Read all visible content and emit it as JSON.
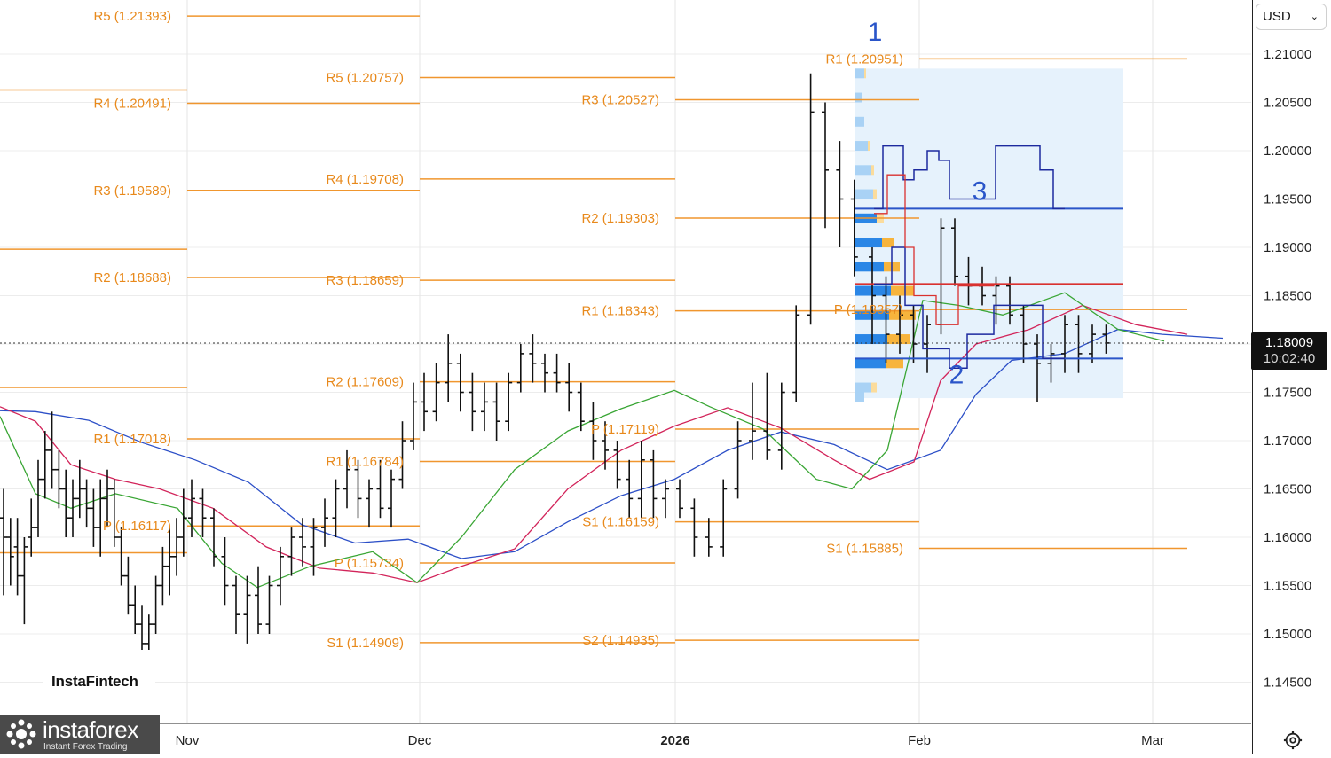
{
  "currency": {
    "label": "USD"
  },
  "last_price": {
    "value": "1.18009",
    "countdown": "10:02:40"
  },
  "brand": {
    "chart_brand": "InstaFintech",
    "watermark_name": "instaforex",
    "watermark_sub": "Instant Forex Trading"
  },
  "icons": {
    "dropdown": "chevron-down-icon",
    "settings": "gear-icon",
    "logo": "instaforex-logo-icon"
  },
  "colors": {
    "pivot": "#f0962e",
    "pivot_text": "#e8891b",
    "candle": "#111111",
    "ma_fast": "#3aa635",
    "ma_mid": "#d2245a",
    "ma_slow": "#2c4fc7",
    "profile_blue": "#2a86e6",
    "profile_orange": "#f7b43c",
    "range_fill": "#e6f2fc",
    "poc": "#d9312f",
    "level": "#2a55c9",
    "va_line": "#1d2a9e",
    "wave_label": "#2a55c9"
  },
  "chart_data": {
    "type": "ohlc",
    "symbol_quote": "USD",
    "y_axis": {
      "min": 1.14,
      "max": 1.215,
      "ticks": [
        "1.21000",
        "1.20500",
        "1.20000",
        "1.19500",
        "1.19000",
        "1.18500",
        "1.18000",
        "1.17500",
        "1.17000",
        "1.16500",
        "1.16000",
        "1.15500",
        "1.15000",
        "1.14500"
      ]
    },
    "x_axis": {
      "labels": [
        "Nov",
        "Dec",
        "2026",
        "Feb",
        "Mar"
      ],
      "bold": [
        "2026"
      ]
    },
    "grid": true,
    "last_price": 1.18009,
    "pivot_levels": [
      {
        "period": 0,
        "levels": [
          {
            "label": "R5 (1.21393)",
            "price": 1.21393
          },
          {
            "label": "R4 (1.20491)",
            "price": 1.20491
          },
          {
            "label": "R3 (1.19589)",
            "price": 1.19589
          },
          {
            "label": "R2 (1.18688)",
            "price": 1.18688
          },
          {
            "label": "R1 (1.17018)",
            "price": 1.17018
          },
          {
            "label": "P (1.16117)",
            "price": 1.16117
          }
        ]
      },
      {
        "period": 1,
        "levels": [
          {
            "label": "R5 (1.20757)",
            "price": 1.20757
          },
          {
            "label": "R4 (1.19708)",
            "price": 1.19708
          },
          {
            "label": "R3 (1.18659)",
            "price": 1.18659
          },
          {
            "label": "R2 (1.17609)",
            "price": 1.17609
          },
          {
            "label": "R1 (1.16784)",
            "price": 1.16784
          },
          {
            "label": "P (1.15734)",
            "price": 1.15734
          },
          {
            "label": "S1 (1.14909)",
            "price": 1.14909
          }
        ]
      },
      {
        "period": 2,
        "levels": [
          {
            "label": "R3 (1.20527)",
            "price": 1.20527
          },
          {
            "label": "R2 (1.19303)",
            "price": 1.19303
          },
          {
            "label": "R1 (1.18343)",
            "price": 1.18343
          },
          {
            "label": "P (1.17119)",
            "price": 1.17119
          },
          {
            "label": "S1 (1.16159)",
            "price": 1.16159
          },
          {
            "label": "S2 (1.14935)",
            "price": 1.14935
          }
        ]
      },
      {
        "period": 3,
        "levels": [
          {
            "label": "R1 (1.20951)",
            "price": 1.20951
          },
          {
            "label": "P (1.18357)",
            "price": 1.18357
          },
          {
            "label": "S1 (1.15885)",
            "price": 1.15885
          }
        ]
      }
    ],
    "wave_labels": [
      "1",
      "2",
      "3"
    ],
    "volume_profile": {
      "poc": 1.1862,
      "value_area_high": 1.194,
      "value_area_low": 1.1785
    },
    "candles_daily": [
      [
        1.162,
        1.165,
        1.154,
        1.16
      ],
      [
        1.16,
        1.162,
        1.155,
        1.158
      ],
      [
        1.159,
        1.162,
        1.154,
        1.156
      ],
      [
        1.156,
        1.16,
        1.151,
        1.159
      ],
      [
        1.16,
        1.164,
        1.158,
        1.161
      ],
      [
        1.161,
        1.168,
        1.16,
        1.166
      ],
      [
        1.166,
        1.171,
        1.164,
        1.169
      ],
      [
        1.169,
        1.173,
        1.165,
        1.167
      ],
      [
        1.167,
        1.169,
        1.163,
        1.165
      ],
      [
        1.165,
        1.167,
        1.16,
        1.162
      ],
      [
        1.162,
        1.166,
        1.16,
        1.164
      ],
      [
        1.164,
        1.168,
        1.162,
        1.165
      ],
      [
        1.165,
        1.166,
        1.161,
        1.163
      ],
      [
        1.163,
        1.165,
        1.159,
        1.161
      ],
      [
        1.161,
        1.166,
        1.158,
        1.164
      ],
      [
        1.164,
        1.167,
        1.161,
        1.165
      ],
      [
        1.165,
        1.166,
        1.159,
        1.16
      ],
      [
        1.16,
        1.161,
        1.155,
        1.156
      ],
      [
        1.156,
        1.158,
        1.152,
        1.153
      ],
      [
        1.153,
        1.155,
        1.15,
        1.151
      ],
      [
        1.151,
        1.153,
        1.147,
        1.149
      ],
      [
        1.149,
        1.152,
        1.148,
        1.151
      ],
      [
        1.151,
        1.156,
        1.15,
        1.155
      ],
      [
        1.155,
        1.159,
        1.153,
        1.157
      ],
      [
        1.157,
        1.161,
        1.154,
        1.158
      ],
      [
        1.158,
        1.162,
        1.156,
        1.16
      ],
      [
        1.16,
        1.165,
        1.158,
        1.162
      ],
      [
        1.162,
        1.166,
        1.16,
        1.164
      ],
      [
        1.164,
        1.165,
        1.16,
        1.162
      ],
      [
        1.162,
        1.163,
        1.157,
        1.158
      ],
      [
        1.158,
        1.16,
        1.153,
        1.155
      ],
      [
        1.155,
        1.156,
        1.15,
        1.152
      ],
      [
        1.152,
        1.156,
        1.149,
        1.154
      ],
      [
        1.154,
        1.157,
        1.15,
        1.151
      ],
      [
        1.151,
        1.156,
        1.15,
        1.155
      ],
      [
        1.155,
        1.159,
        1.153,
        1.158
      ],
      [
        1.158,
        1.161,
        1.156,
        1.16
      ],
      [
        1.16,
        1.162,
        1.157,
        1.159
      ],
      [
        1.159,
        1.162,
        1.156,
        1.161
      ],
      [
        1.161,
        1.164,
        1.159,
        1.162
      ],
      [
        1.162,
        1.166,
        1.16,
        1.165
      ],
      [
        1.165,
        1.169,
        1.163,
        1.167
      ],
      [
        1.167,
        1.168,
        1.162,
        1.164
      ],
      [
        1.164,
        1.166,
        1.161,
        1.165
      ],
      [
        1.165,
        1.168,
        1.162,
        1.163
      ],
      [
        1.163,
        1.167,
        1.161,
        1.166
      ],
      [
        1.166,
        1.172,
        1.165,
        1.17
      ],
      [
        1.17,
        1.176,
        1.169,
        1.174
      ],
      [
        1.174,
        1.177,
        1.171,
        1.173
      ],
      [
        1.173,
        1.178,
        1.172,
        1.176
      ],
      [
        1.176,
        1.181,
        1.174,
        1.178
      ],
      [
        1.178,
        1.179,
        1.173,
        1.175
      ],
      [
        1.175,
        1.177,
        1.171,
        1.173
      ],
      [
        1.173,
        1.176,
        1.171,
        1.174
      ],
      [
        1.174,
        1.176,
        1.17,
        1.172
      ],
      [
        1.172,
        1.177,
        1.171,
        1.176
      ],
      [
        1.176,
        1.18,
        1.175,
        1.179
      ],
      [
        1.179,
        1.181,
        1.176,
        1.178
      ],
      [
        1.178,
        1.179,
        1.175,
        1.177
      ],
      [
        1.177,
        1.179,
        1.175,
        1.176
      ],
      [
        1.176,
        1.178,
        1.173,
        1.175
      ],
      [
        1.175,
        1.176,
        1.171,
        1.172
      ],
      [
        1.172,
        1.174,
        1.168,
        1.17
      ],
      [
        1.17,
        1.172,
        1.167,
        1.169
      ],
      [
        1.169,
        1.17,
        1.165,
        1.166
      ],
      [
        1.166,
        1.168,
        1.162,
        1.164
      ],
      [
        1.164,
        1.17,
        1.162,
        1.168
      ],
      [
        1.168,
        1.169,
        1.162,
        1.164
      ],
      [
        1.164,
        1.166,
        1.162,
        1.165
      ],
      [
        1.165,
        1.166,
        1.162,
        1.163
      ],
      [
        1.163,
        1.164,
        1.158,
        1.16
      ],
      [
        1.16,
        1.162,
        1.158,
        1.159
      ],
      [
        1.159,
        1.166,
        1.158,
        1.165
      ],
      [
        1.165,
        1.172,
        1.164,
        1.17
      ],
      [
        1.17,
        1.176,
        1.168,
        1.171
      ],
      [
        1.171,
        1.177,
        1.168,
        1.169
      ],
      [
        1.169,
        1.176,
        1.167,
        1.175
      ],
      [
        1.175,
        1.184,
        1.174,
        1.183
      ],
      [
        1.183,
        1.208,
        1.182,
        1.204
      ],
      [
        1.204,
        1.205,
        1.192,
        1.198
      ],
      [
        1.198,
        1.201,
        1.19,
        1.195
      ],
      [
        1.195,
        1.197,
        1.187,
        1.189
      ],
      [
        1.189,
        1.19,
        1.18,
        1.185
      ],
      [
        1.185,
        1.187,
        1.178,
        1.181
      ],
      [
        1.181,
        1.185,
        1.179,
        1.183
      ],
      [
        1.183,
        1.184,
        1.178,
        1.18
      ],
      [
        1.18,
        1.183,
        1.177,
        1.182
      ],
      [
        1.182,
        1.193,
        1.181,
        1.192
      ],
      [
        1.192,
        1.193,
        1.186,
        1.187
      ],
      [
        1.187,
        1.189,
        1.184,
        1.186
      ],
      [
        1.186,
        1.188,
        1.184,
        1.185
      ],
      [
        1.185,
        1.187,
        1.182,
        1.186
      ],
      [
        1.186,
        1.187,
        1.182,
        1.183
      ],
      [
        1.183,
        1.184,
        1.178,
        1.18
      ],
      [
        1.18,
        1.181,
        1.174,
        1.178
      ],
      [
        1.178,
        1.18,
        1.176,
        1.179
      ],
      [
        1.179,
        1.183,
        1.177,
        1.182
      ],
      [
        1.182,
        1.183,
        1.177,
        1.179
      ],
      [
        1.179,
        1.182,
        1.178,
        1.181
      ],
      [
        1.181,
        1.182,
        1.179,
        1.1801
      ]
    ]
  }
}
